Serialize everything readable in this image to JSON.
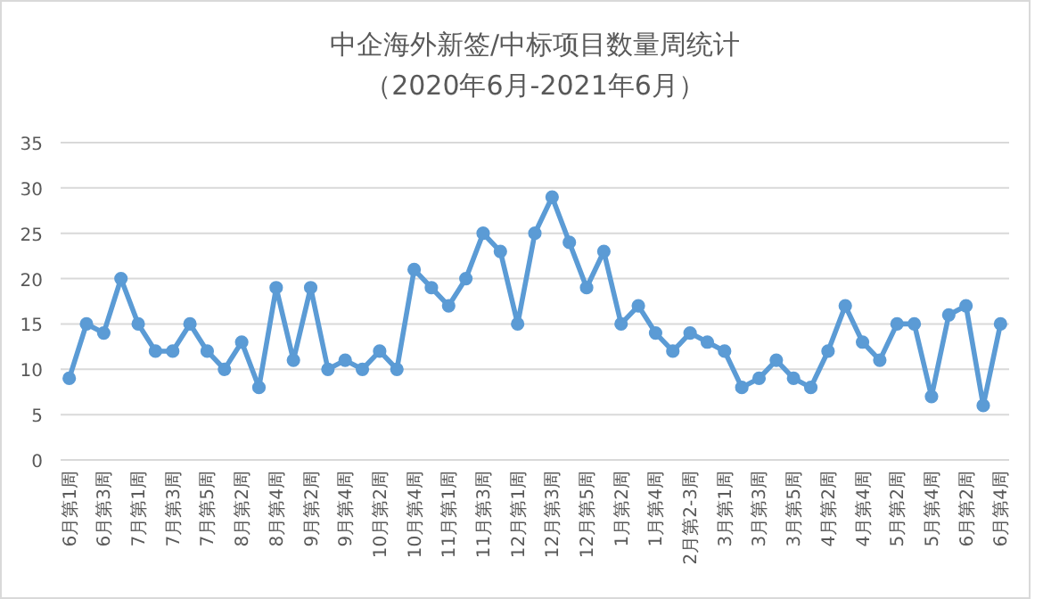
{
  "chart_data": {
    "type": "line",
    "title": "中企海外新签/中标项目数量周统计",
    "subtitle": "（2020年6月-2021年6月）",
    "categories": [
      "6月第1周",
      null,
      "6月第3周",
      null,
      "7月第1周",
      null,
      "7月第3周",
      null,
      "7月第5周",
      null,
      "8月第2周",
      null,
      "8月第4周",
      null,
      "9月第2周",
      null,
      "9月第4周",
      null,
      "10月第2周",
      null,
      "10月第4周",
      null,
      "11月第1周",
      null,
      "11月第3周",
      null,
      "12月第1周",
      null,
      "12月第3周",
      null,
      "12月第5周",
      null,
      "1月第2周",
      null,
      "1月第4周",
      null,
      "2月第2-3周",
      null,
      "3月第1周",
      null,
      "3月第3周",
      null,
      "3月第5周",
      null,
      "4月第2周",
      null,
      "4月第4周",
      null,
      "5月第2周",
      null,
      "5月第4周",
      null,
      "6月第2周",
      null,
      "6月第4周"
    ],
    "series": [
      {
        "color": "#5b9bd5",
        "values": [
          9,
          15,
          14,
          20,
          15,
          12,
          12,
          15,
          12,
          10,
          13,
          8,
          19,
          11,
          19,
          10,
          11,
          10,
          12,
          10,
          21,
          19,
          17,
          20,
          25,
          23,
          15,
          25,
          29,
          24,
          19,
          23,
          15,
          17,
          14,
          12,
          14,
          13,
          12,
          8,
          9,
          11,
          9,
          8,
          12,
          17,
          13,
          11,
          15,
          15,
          7,
          16,
          17,
          6,
          15
        ]
      }
    ],
    "ylim": [
      0,
      35
    ],
    "yticks": [
      0,
      5,
      10,
      15,
      20,
      25,
      30,
      35
    ],
    "grid": "y",
    "marker": "circle",
    "line_style": "solid"
  }
}
